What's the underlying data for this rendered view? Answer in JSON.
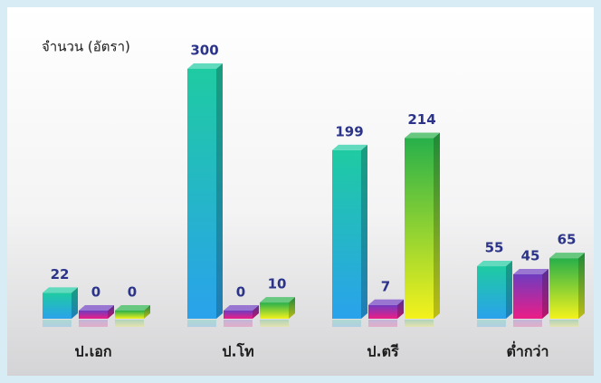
{
  "chart_data": {
    "type": "bar",
    "y_label": "จำนวน (อัตรา)",
    "categories": [
      "ป.เอก",
      "ป.โท",
      "ป.ตรี",
      "ต่ำกว่า"
    ],
    "series": [
      {
        "color": [
          "#1fcba2",
          "#2aa2ec"
        ],
        "values": [
          22,
          300,
          199,
          55
        ]
      },
      {
        "color": [
          "#6f3cc0",
          "#ec1d86"
        ],
        "values": [
          0,
          0,
          7,
          45
        ]
      },
      {
        "color": [
          "#27b04a",
          "#f4f21c"
        ],
        "values": [
          0,
          10,
          214,
          65
        ]
      }
    ]
  }
}
